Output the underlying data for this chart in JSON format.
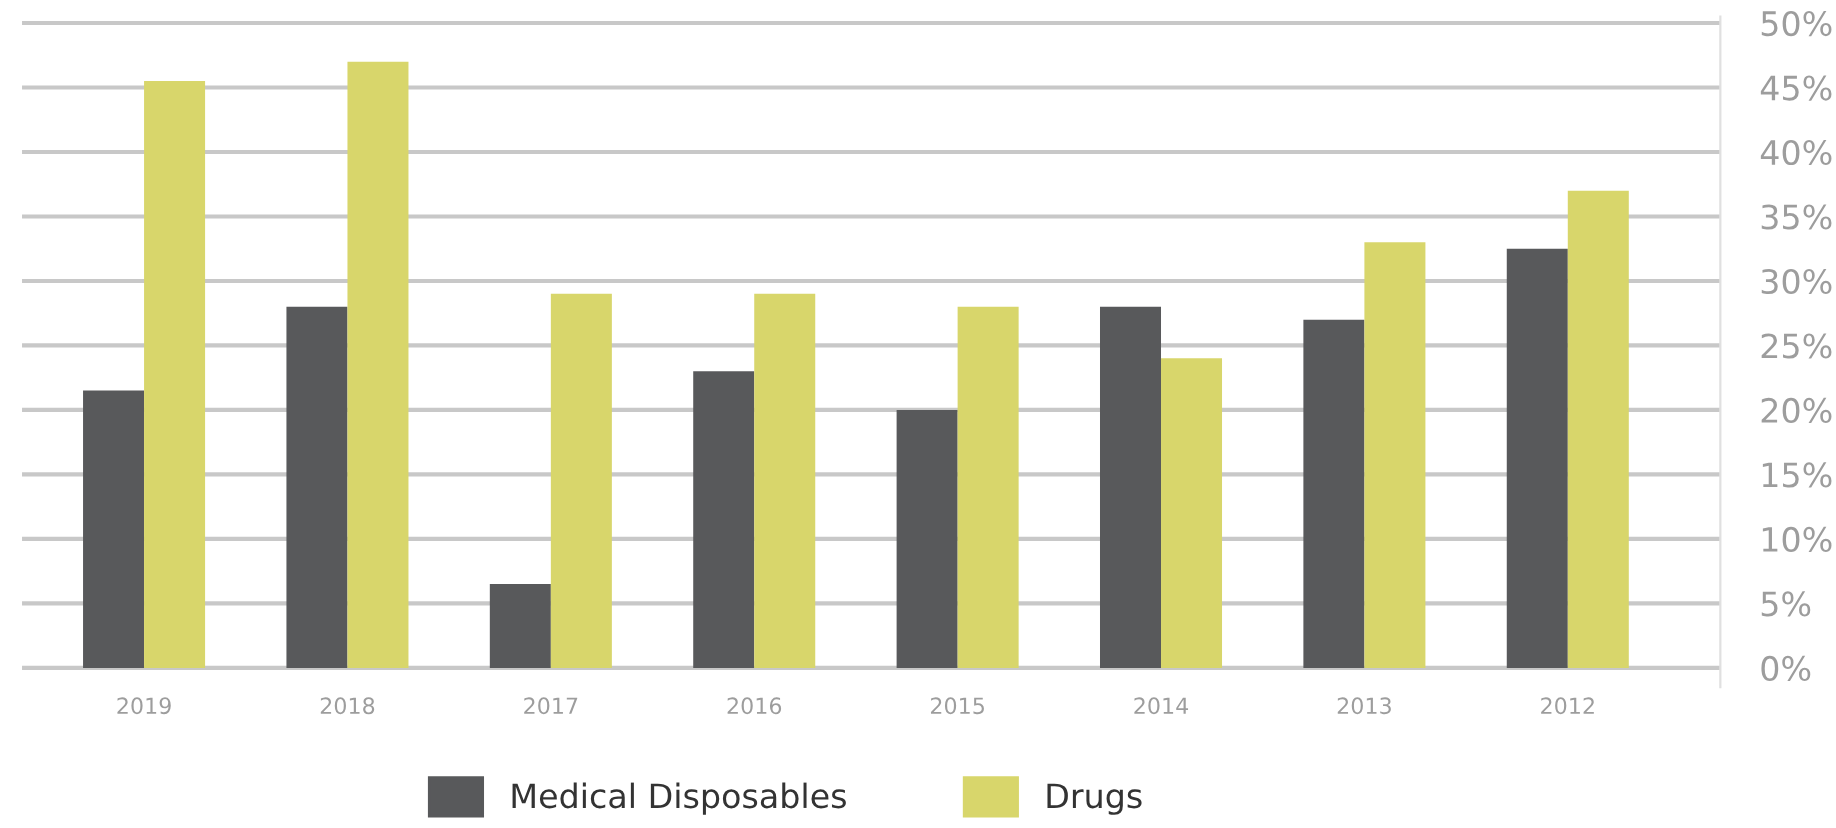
{
  "chart_data": {
    "type": "bar",
    "categories": [
      "2019",
      "2018",
      "2017",
      "2016",
      "2015",
      "2014",
      "2013",
      "2012"
    ],
    "series": [
      {
        "name": "Medical Disposables",
        "color": "#58595b",
        "values": [
          21.5,
          28,
          6.5,
          23,
          20,
          28,
          27,
          32.5
        ]
      },
      {
        "name": "Drugs",
        "color": "#d8d66b",
        "values": [
          45.5,
          47,
          29,
          29,
          28,
          24,
          33,
          37
        ]
      }
    ],
    "ylim": [
      -1.5,
      50.5
    ],
    "yticks": [
      {
        "value": 0,
        "label": "0%"
      },
      {
        "value": 5,
        "label": "5%"
      },
      {
        "value": 10,
        "label": "10%"
      },
      {
        "value": 15,
        "label": "15%"
      },
      {
        "value": 20,
        "label": "20%"
      },
      {
        "value": 25,
        "label": "25%"
      },
      {
        "value": 30,
        "label": "30%"
      },
      {
        "value": 35,
        "label": "35%"
      },
      {
        "value": 40,
        "label": "40%"
      },
      {
        "value": 45,
        "label": "45%"
      },
      {
        "value": 50,
        "label": "50%"
      }
    ],
    "grid": "y",
    "legend": "bottom"
  }
}
